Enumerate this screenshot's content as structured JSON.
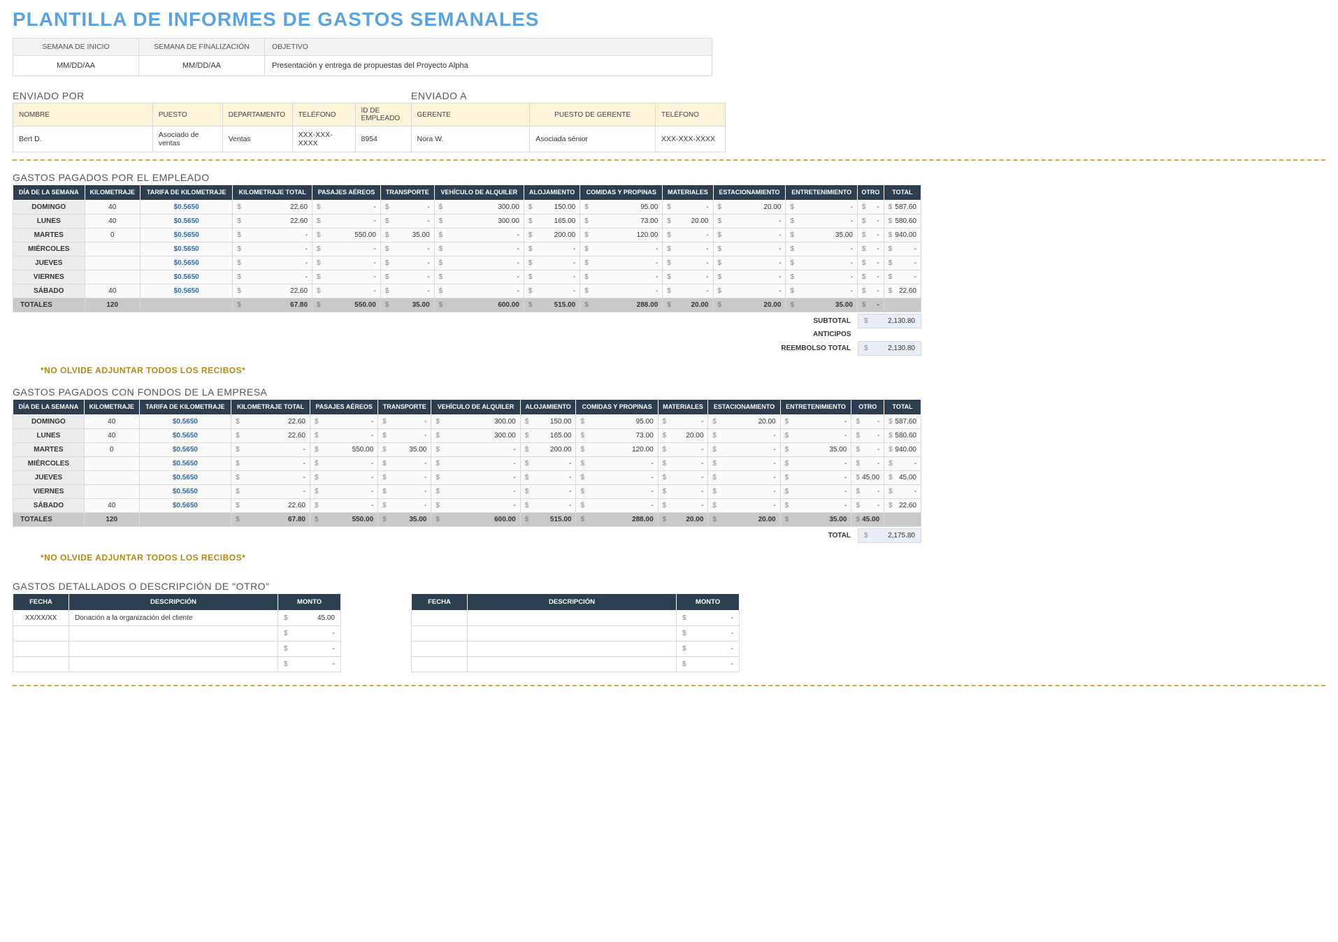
{
  "title": "PLANTILLA DE INFORMES DE GASTOS SEMANALES",
  "info": {
    "headers": {
      "start": "SEMANA DE INICIO",
      "end": "SEMANA DE FINALIZACIÓN",
      "obj": "OBJETIVO"
    },
    "values": {
      "start": "MM/DD/AA",
      "end": "MM/DD/AA",
      "obj": "Presentación y entrega de propuestas del Proyecto Alpha"
    }
  },
  "sent": {
    "by_label": "ENVIADO POR",
    "to_label": "ENVIADO A",
    "headers": {
      "name": "NOMBRE",
      "title": "PUESTO",
      "dept": "DEPARTAMENTO",
      "phone": "TELÉFONO",
      "empid": "ID DE EMPLEADO",
      "manager": "GERENTE",
      "mtitle": "PUESTO DE GERENTE",
      "mphone": "TELÉFONO"
    },
    "values": {
      "name": "Bert D.",
      "title": "Asociado de ventas",
      "dept": "Ventas",
      "phone": "XXX-XXX-XXXX",
      "empid": "8954",
      "manager": "Nora W.",
      "mtitle": "Asociada sénior",
      "mphone": "XXX-XXX-XXXX"
    }
  },
  "expenseHeaders": [
    "DÍA DE LA SEMANA",
    "KILOMETRAJE",
    "TARIFA DE KILOMETRAJE",
    "KILOMETRAJE TOTAL",
    "PASAJES AÉREOS",
    "TRANSPORTE",
    "VEHÍCULO DE ALQUILER",
    "ALOJAMIENTO",
    "COMIDAS Y PROPINAS",
    "MATERIALES",
    "ESTACIONAMIENTO",
    "ENTRETENIMIENTO",
    "OTRO",
    "TOTAL"
  ],
  "days": [
    "DOMINGO",
    "LUNES",
    "MARTES",
    "MIÉRCOLES",
    "JUEVES",
    "VIERNES",
    "SÁBADO"
  ],
  "totalsLabel": "TOTALES",
  "rateDisplay": "$0.5650",
  "employee": {
    "label": "GASTOS PAGADOS POR EL EMPLEADO",
    "rows": [
      {
        "km": "40",
        "kt": "22.60",
        "air": "-",
        "tr": "-",
        "veh": "300.00",
        "loj": "150.00",
        "com": "95.00",
        "mat": "-",
        "est": "20.00",
        "ent": "-",
        "otro": "-",
        "tot": "587.60"
      },
      {
        "km": "40",
        "kt": "22.60",
        "air": "-",
        "tr": "-",
        "veh": "300.00",
        "loj": "165.00",
        "com": "73.00",
        "mat": "20.00",
        "est": "-",
        "ent": "-",
        "otro": "-",
        "tot": "580.60"
      },
      {
        "km": "0",
        "kt": "-",
        "air": "550.00",
        "tr": "35.00",
        "veh": "-",
        "loj": "200.00",
        "com": "120.00",
        "mat": "-",
        "est": "-",
        "ent": "35.00",
        "otro": "-",
        "tot": "940.00"
      },
      {
        "km": "",
        "kt": "-",
        "air": "-",
        "tr": "-",
        "veh": "-",
        "loj": "-",
        "com": "-",
        "mat": "-",
        "est": "-",
        "ent": "-",
        "otro": "-",
        "tot": "-"
      },
      {
        "km": "",
        "kt": "-",
        "air": "-",
        "tr": "-",
        "veh": "-",
        "loj": "-",
        "com": "-",
        "mat": "-",
        "est": "-",
        "ent": "-",
        "otro": "-",
        "tot": "-"
      },
      {
        "km": "",
        "kt": "-",
        "air": "-",
        "tr": "-",
        "veh": "-",
        "loj": "-",
        "com": "-",
        "mat": "-",
        "est": "-",
        "ent": "-",
        "otro": "-",
        "tot": "-"
      },
      {
        "km": "40",
        "kt": "22.60",
        "air": "-",
        "tr": "-",
        "veh": "-",
        "loj": "-",
        "com": "-",
        "mat": "-",
        "est": "-",
        "ent": "-",
        "otro": "-",
        "tot": "22.60"
      }
    ],
    "totals": {
      "km": "120",
      "kt": "67.80",
      "air": "550.00",
      "tr": "35.00",
      "veh": "600.00",
      "loj": "515.00",
      "com": "288.00",
      "mat": "20.00",
      "est": "20.00",
      "ent": "35.00",
      "otro": "-"
    },
    "summary": [
      {
        "lbl": "SUBTOTAL",
        "val": "2,130.80",
        "shade": true
      },
      {
        "lbl": "ANTICIPOS",
        "val": "",
        "shade": false
      },
      {
        "lbl": "REEMBOLSO TOTAL",
        "val": "2,130.80",
        "shade": true
      }
    ]
  },
  "company": {
    "label": "GASTOS PAGADOS CON FONDOS DE LA EMPRESA",
    "rows": [
      {
        "km": "40",
        "kt": "22.60",
        "air": "-",
        "tr": "-",
        "veh": "300.00",
        "loj": "150.00",
        "com": "95.00",
        "mat": "-",
        "est": "20.00",
        "ent": "-",
        "otro": "-",
        "tot": "587.60"
      },
      {
        "km": "40",
        "kt": "22.60",
        "air": "-",
        "tr": "-",
        "veh": "300.00",
        "loj": "165.00",
        "com": "73.00",
        "mat": "20.00",
        "est": "-",
        "ent": "-",
        "otro": "-",
        "tot": "580.60"
      },
      {
        "km": "0",
        "kt": "-",
        "air": "550.00",
        "tr": "35.00",
        "veh": "-",
        "loj": "200.00",
        "com": "120.00",
        "mat": "-",
        "est": "-",
        "ent": "35.00",
        "otro": "-",
        "tot": "940.00"
      },
      {
        "km": "",
        "kt": "-",
        "air": "-",
        "tr": "-",
        "veh": "-",
        "loj": "-",
        "com": "-",
        "mat": "-",
        "est": "-",
        "ent": "-",
        "otro": "-",
        "tot": "-"
      },
      {
        "km": "",
        "kt": "-",
        "air": "-",
        "tr": "-",
        "veh": "-",
        "loj": "-",
        "com": "-",
        "mat": "-",
        "est": "-",
        "ent": "-",
        "otro": "45.00",
        "tot": "45.00"
      },
      {
        "km": "",
        "kt": "-",
        "air": "-",
        "tr": "-",
        "veh": "-",
        "loj": "-",
        "com": "-",
        "mat": "-",
        "est": "-",
        "ent": "-",
        "otro": "-",
        "tot": "-"
      },
      {
        "km": "40",
        "kt": "22.60",
        "air": "-",
        "tr": "-",
        "veh": "-",
        "loj": "-",
        "com": "-",
        "mat": "-",
        "est": "-",
        "ent": "-",
        "otro": "-",
        "tot": "22.60"
      }
    ],
    "totals": {
      "km": "120",
      "kt": "67.80",
      "air": "550.00",
      "tr": "35.00",
      "veh": "600.00",
      "loj": "515.00",
      "com": "288.00",
      "mat": "20.00",
      "est": "20.00",
      "ent": "35.00",
      "otro": "45.00"
    },
    "summary": [
      {
        "lbl": "TOTAL",
        "val": "2,175.80",
        "shade": true
      }
    ]
  },
  "reminder": "*NO OLVIDE ADJUNTAR TODOS LOS RECIBOS*",
  "detail": {
    "label": "GASTOS DETALLADOS O DESCRIPCIÓN DE \"OTRO\"",
    "headers": {
      "fecha": "FECHA",
      "desc": "DESCRIPCIÓN",
      "monto": "MONTO"
    },
    "left": [
      {
        "fecha": "XX/XX/XX",
        "desc": "Donación a la organización del cliente",
        "monto": "45.00"
      },
      {
        "fecha": "",
        "desc": "",
        "monto": "-"
      },
      {
        "fecha": "",
        "desc": "",
        "monto": "-"
      },
      {
        "fecha": "",
        "desc": "",
        "monto": "-"
      }
    ],
    "right": [
      {
        "fecha": "",
        "desc": "",
        "monto": "-"
      },
      {
        "fecha": "",
        "desc": "",
        "monto": "-"
      },
      {
        "fecha": "",
        "desc": "",
        "monto": "-"
      },
      {
        "fecha": "",
        "desc": "",
        "monto": "-"
      }
    ]
  }
}
